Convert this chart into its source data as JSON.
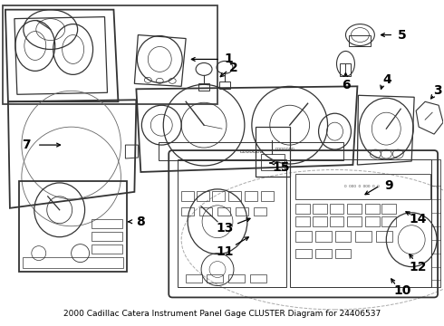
{
  "title": "2000 Cadillac Catera Instrument Panel Gage CLUSTER Diagram for 24406537",
  "bg_color": "#ffffff",
  "label_color": "#000000",
  "line_color": "#333333",
  "font_size_labels": 9,
  "font_weight": "bold"
}
